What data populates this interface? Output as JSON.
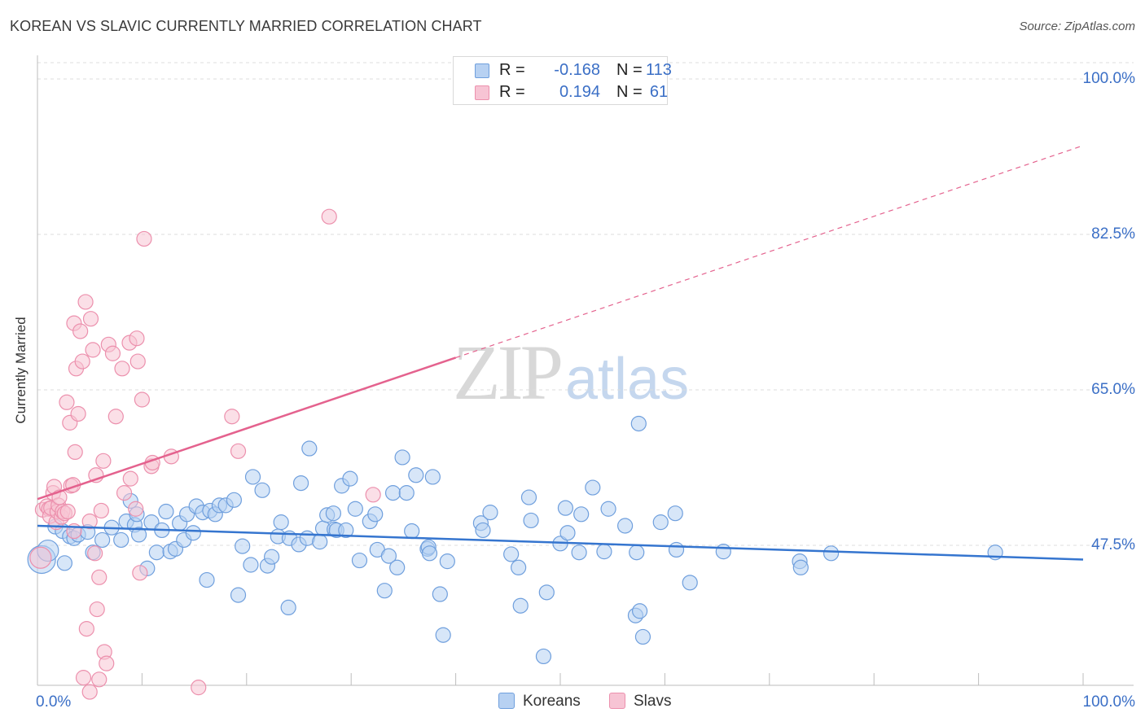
{
  "header": {
    "title": "KOREAN VS SLAVIC CURRENTLY MARRIED CORRELATION CHART",
    "source": "Source: ZipAtlas.com"
  },
  "watermark": {
    "zip": "ZIP",
    "atlas": "atlas"
  },
  "legend": {
    "koreans": {
      "r_label": "R =",
      "r_value": "-0.168",
      "n_label": "N =",
      "n_value": "113"
    },
    "slavs": {
      "r_label": "R =",
      "r_value": "0.194",
      "n_label": "N =",
      "n_value": "61"
    }
  },
  "bottom_legend": {
    "koreans": "Koreans",
    "slavs": "Slavs"
  },
  "axes": {
    "y_title": "Currently Married",
    "x_min_label": "0.0%",
    "x_max_label": "100.0%",
    "y_ticks": [
      "100.0%",
      "82.5%",
      "65.0%",
      "47.5%"
    ]
  },
  "colors": {
    "koreans_fill": "#b7d1f2",
    "koreans_stroke": "#6f9fdd",
    "koreans_line": "#3575cf",
    "slavs_fill": "#f7c4d4",
    "slavs_stroke": "#ec90ad",
    "slavs_line": "#e4628e",
    "grid": "#dcdcdc",
    "tick_label": "#3b6fc6"
  },
  "chart_data": {
    "type": "scatter",
    "title": "KOREAN VS SLAVIC CURRENTLY MARRIED CORRELATION CHART",
    "xlabel": "",
    "ylabel": "Currently Married",
    "xlim": [
      0,
      100
    ],
    "ylim": [
      31,
      102
    ],
    "x_ticks": [
      0,
      100
    ],
    "y_ticks": [
      47.5,
      65.0,
      82.5,
      100.0
    ],
    "grid": true,
    "series": [
      {
        "name": "Koreans",
        "r": -0.168,
        "n": 113,
        "trend": {
          "x": [
            0,
            100
          ],
          "y": [
            49.7,
            45.9
          ],
          "dashed_from": null
        },
        "points": [
          [
            0.4,
            45.9,
            3
          ],
          [
            1.0,
            46.9,
            2
          ],
          [
            1.7,
            49.6,
            1
          ],
          [
            2.4,
            49.1,
            1
          ],
          [
            2.6,
            45.5,
            1
          ],
          [
            3.1,
            48.5,
            1
          ],
          [
            3.5,
            48.3,
            1
          ],
          [
            3.9,
            48.7,
            1
          ],
          [
            4.8,
            49.0,
            1
          ],
          [
            5.3,
            46.7,
            1
          ],
          [
            6.2,
            48.1,
            1
          ],
          [
            7.1,
            49.5,
            1
          ],
          [
            8.0,
            48.1,
            1
          ],
          [
            8.5,
            50.2,
            1
          ],
          [
            8.9,
            52.5,
            1
          ],
          [
            9.3,
            49.8,
            1
          ],
          [
            9.5,
            51.0,
            1
          ],
          [
            9.7,
            48.7,
            1
          ],
          [
            10.5,
            44.9,
            1
          ],
          [
            10.9,
            50.1,
            1
          ],
          [
            11.4,
            46.7,
            1
          ],
          [
            11.9,
            49.2,
            1
          ],
          [
            12.3,
            51.3,
            1
          ],
          [
            12.7,
            46.8,
            1
          ],
          [
            13.2,
            47.1,
            1
          ],
          [
            13.6,
            50.0,
            1
          ],
          [
            14.0,
            48.1,
            1
          ],
          [
            14.3,
            51.0,
            1
          ],
          [
            14.9,
            48.9,
            1
          ],
          [
            15.2,
            51.9,
            1
          ],
          [
            15.8,
            51.2,
            1
          ],
          [
            16.2,
            43.6,
            1
          ],
          [
            16.5,
            51.4,
            1
          ],
          [
            17.0,
            51.0,
            1
          ],
          [
            17.4,
            52.0,
            1
          ],
          [
            18.0,
            52.0,
            1
          ],
          [
            18.8,
            52.6,
            1
          ],
          [
            19.2,
            41.9,
            1
          ],
          [
            19.6,
            47.4,
            1
          ],
          [
            20.4,
            45.3,
            1
          ],
          [
            20.6,
            55.2,
            1
          ],
          [
            21.5,
            53.7,
            1
          ],
          [
            22.0,
            45.2,
            1
          ],
          [
            22.4,
            46.2,
            1
          ],
          [
            23.0,
            48.5,
            1
          ],
          [
            23.3,
            50.1,
            1
          ],
          [
            24.0,
            40.5,
            1
          ],
          [
            24.1,
            48.3,
            1
          ],
          [
            25.0,
            47.6,
            1
          ],
          [
            25.2,
            54.5,
            1
          ],
          [
            25.8,
            48.3,
            1
          ],
          [
            26.0,
            58.4,
            1
          ],
          [
            27.0,
            47.9,
            1
          ],
          [
            27.3,
            49.4,
            1
          ],
          [
            27.7,
            50.9,
            1
          ],
          [
            28.3,
            51.1,
            1
          ],
          [
            28.4,
            49.3,
            1
          ],
          [
            28.6,
            49.2,
            1
          ],
          [
            29.1,
            54.2,
            1
          ],
          [
            29.5,
            49.2,
            1
          ],
          [
            29.9,
            55.0,
            1
          ],
          [
            30.4,
            51.6,
            1
          ],
          [
            30.8,
            45.8,
            1
          ],
          [
            31.8,
            50.2,
            1
          ],
          [
            32.3,
            51.0,
            1
          ],
          [
            32.5,
            47.0,
            1
          ],
          [
            33.2,
            42.4,
            1
          ],
          [
            33.6,
            46.3,
            1
          ],
          [
            34.0,
            53.4,
            1
          ],
          [
            34.4,
            45.0,
            1
          ],
          [
            34.9,
            57.4,
            1
          ],
          [
            35.3,
            53.4,
            1
          ],
          [
            35.8,
            49.1,
            1
          ],
          [
            36.2,
            55.4,
            1
          ],
          [
            37.3,
            47.1,
            1
          ],
          [
            37.4,
            47.3,
            1
          ],
          [
            37.5,
            46.6,
            1
          ],
          [
            37.8,
            55.2,
            1
          ],
          [
            38.5,
            42.0,
            1
          ],
          [
            38.8,
            37.4,
            1
          ],
          [
            39.2,
            45.7,
            1
          ],
          [
            42.4,
            50.0,
            1
          ],
          [
            42.6,
            49.2,
            1
          ],
          [
            43.3,
            51.2,
            1
          ],
          [
            45.3,
            46.5,
            1
          ],
          [
            46.0,
            45.0,
            1
          ],
          [
            46.2,
            40.7,
            1
          ],
          [
            47.0,
            52.9,
            1
          ],
          [
            47.2,
            50.3,
            1
          ],
          [
            48.4,
            35.0,
            1
          ],
          [
            48.7,
            42.2,
            1
          ],
          [
            50.0,
            47.7,
            1
          ],
          [
            50.5,
            51.7,
            1
          ],
          [
            50.7,
            48.9,
            1
          ],
          [
            51.8,
            46.7,
            1
          ],
          [
            52.0,
            51.0,
            1
          ],
          [
            53.1,
            54.0,
            1
          ],
          [
            54.2,
            46.8,
            1
          ],
          [
            54.6,
            51.6,
            1
          ],
          [
            56.2,
            49.7,
            1
          ],
          [
            57.2,
            39.6,
            1
          ],
          [
            57.3,
            46.7,
            1
          ],
          [
            57.6,
            40.1,
            1
          ],
          [
            57.9,
            37.2,
            1
          ],
          [
            57.5,
            61.2,
            1
          ],
          [
            59.6,
            50.1,
            1
          ],
          [
            61.0,
            51.1,
            1
          ],
          [
            61.1,
            47.0,
            1
          ],
          [
            62.4,
            43.3,
            1
          ],
          [
            65.6,
            46.8,
            1
          ],
          [
            72.9,
            45.7,
            1
          ],
          [
            73.0,
            45.0,
            1
          ],
          [
            75.9,
            46.6,
            1
          ],
          [
            91.6,
            46.7,
            1
          ]
        ]
      },
      {
        "name": "Slavs",
        "r": 0.194,
        "n": 61,
        "trend": {
          "x": [
            0,
            100
          ],
          "y": [
            52.7,
            92.5
          ],
          "dashed_from": 40
        },
        "points": [
          [
            0.3,
            46.1,
            2
          ],
          [
            0.5,
            51.5,
            1
          ],
          [
            0.9,
            51.9,
            1
          ],
          [
            1.1,
            51.6,
            1
          ],
          [
            1.2,
            50.8,
            1
          ],
          [
            1.3,
            51.7,
            1
          ],
          [
            1.5,
            53.4,
            1
          ],
          [
            1.6,
            54.1,
            1
          ],
          [
            1.8,
            50.1,
            1
          ],
          [
            1.9,
            51.3,
            1
          ],
          [
            2.0,
            52.0,
            1
          ],
          [
            2.1,
            52.9,
            1
          ],
          [
            2.3,
            50.7,
            1
          ],
          [
            2.4,
            51.3,
            1
          ],
          [
            2.6,
            51.1,
            1
          ],
          [
            2.8,
            63.6,
            1
          ],
          [
            2.9,
            51.3,
            1
          ],
          [
            3.1,
            61.3,
            1
          ],
          [
            3.2,
            54.2,
            1
          ],
          [
            3.4,
            54.3,
            1
          ],
          [
            3.5,
            49.1,
            1
          ],
          [
            3.5,
            72.5,
            1
          ],
          [
            3.6,
            58.0,
            1
          ],
          [
            3.7,
            67.4,
            1
          ],
          [
            3.9,
            62.3,
            1
          ],
          [
            4.1,
            71.6,
            1
          ],
          [
            4.3,
            68.2,
            1
          ],
          [
            4.4,
            32.6,
            1
          ],
          [
            4.6,
            74.9,
            1
          ],
          [
            4.7,
            38.1,
            1
          ],
          [
            5.0,
            50.2,
            1
          ],
          [
            5.0,
            31.0,
            1
          ],
          [
            5.1,
            73.0,
            1
          ],
          [
            5.3,
            69.5,
            1
          ],
          [
            5.5,
            46.6,
            1
          ],
          [
            5.6,
            55.4,
            1
          ],
          [
            5.7,
            40.3,
            1
          ],
          [
            5.9,
            32.4,
            1
          ],
          [
            5.9,
            43.9,
            1
          ],
          [
            6.1,
            51.4,
            1
          ],
          [
            6.3,
            57.0,
            1
          ],
          [
            6.4,
            35.5,
            1
          ],
          [
            6.6,
            34.2,
            1
          ],
          [
            6.8,
            70.1,
            1
          ],
          [
            7.2,
            69.1,
            1
          ],
          [
            7.5,
            62.0,
            1
          ],
          [
            8.1,
            67.4,
            1
          ],
          [
            8.3,
            53.4,
            1
          ],
          [
            8.8,
            70.3,
            1
          ],
          [
            8.9,
            55.0,
            1
          ],
          [
            9.4,
            51.6,
            1
          ],
          [
            9.5,
            70.8,
            1
          ],
          [
            9.6,
            68.2,
            1
          ],
          [
            9.8,
            44.4,
            1
          ],
          [
            10.0,
            63.9,
            1
          ],
          [
            10.2,
            82.0,
            1
          ],
          [
            10.9,
            56.4,
            1
          ],
          [
            11.0,
            56.8,
            1
          ],
          [
            12.8,
            57.5,
            1
          ],
          [
            15.4,
            31.5,
            1
          ],
          [
            18.6,
            62.0,
            1
          ],
          [
            19.2,
            58.1,
            1
          ],
          [
            27.9,
            84.5,
            1
          ],
          [
            32.1,
            53.2,
            1
          ]
        ]
      }
    ]
  }
}
